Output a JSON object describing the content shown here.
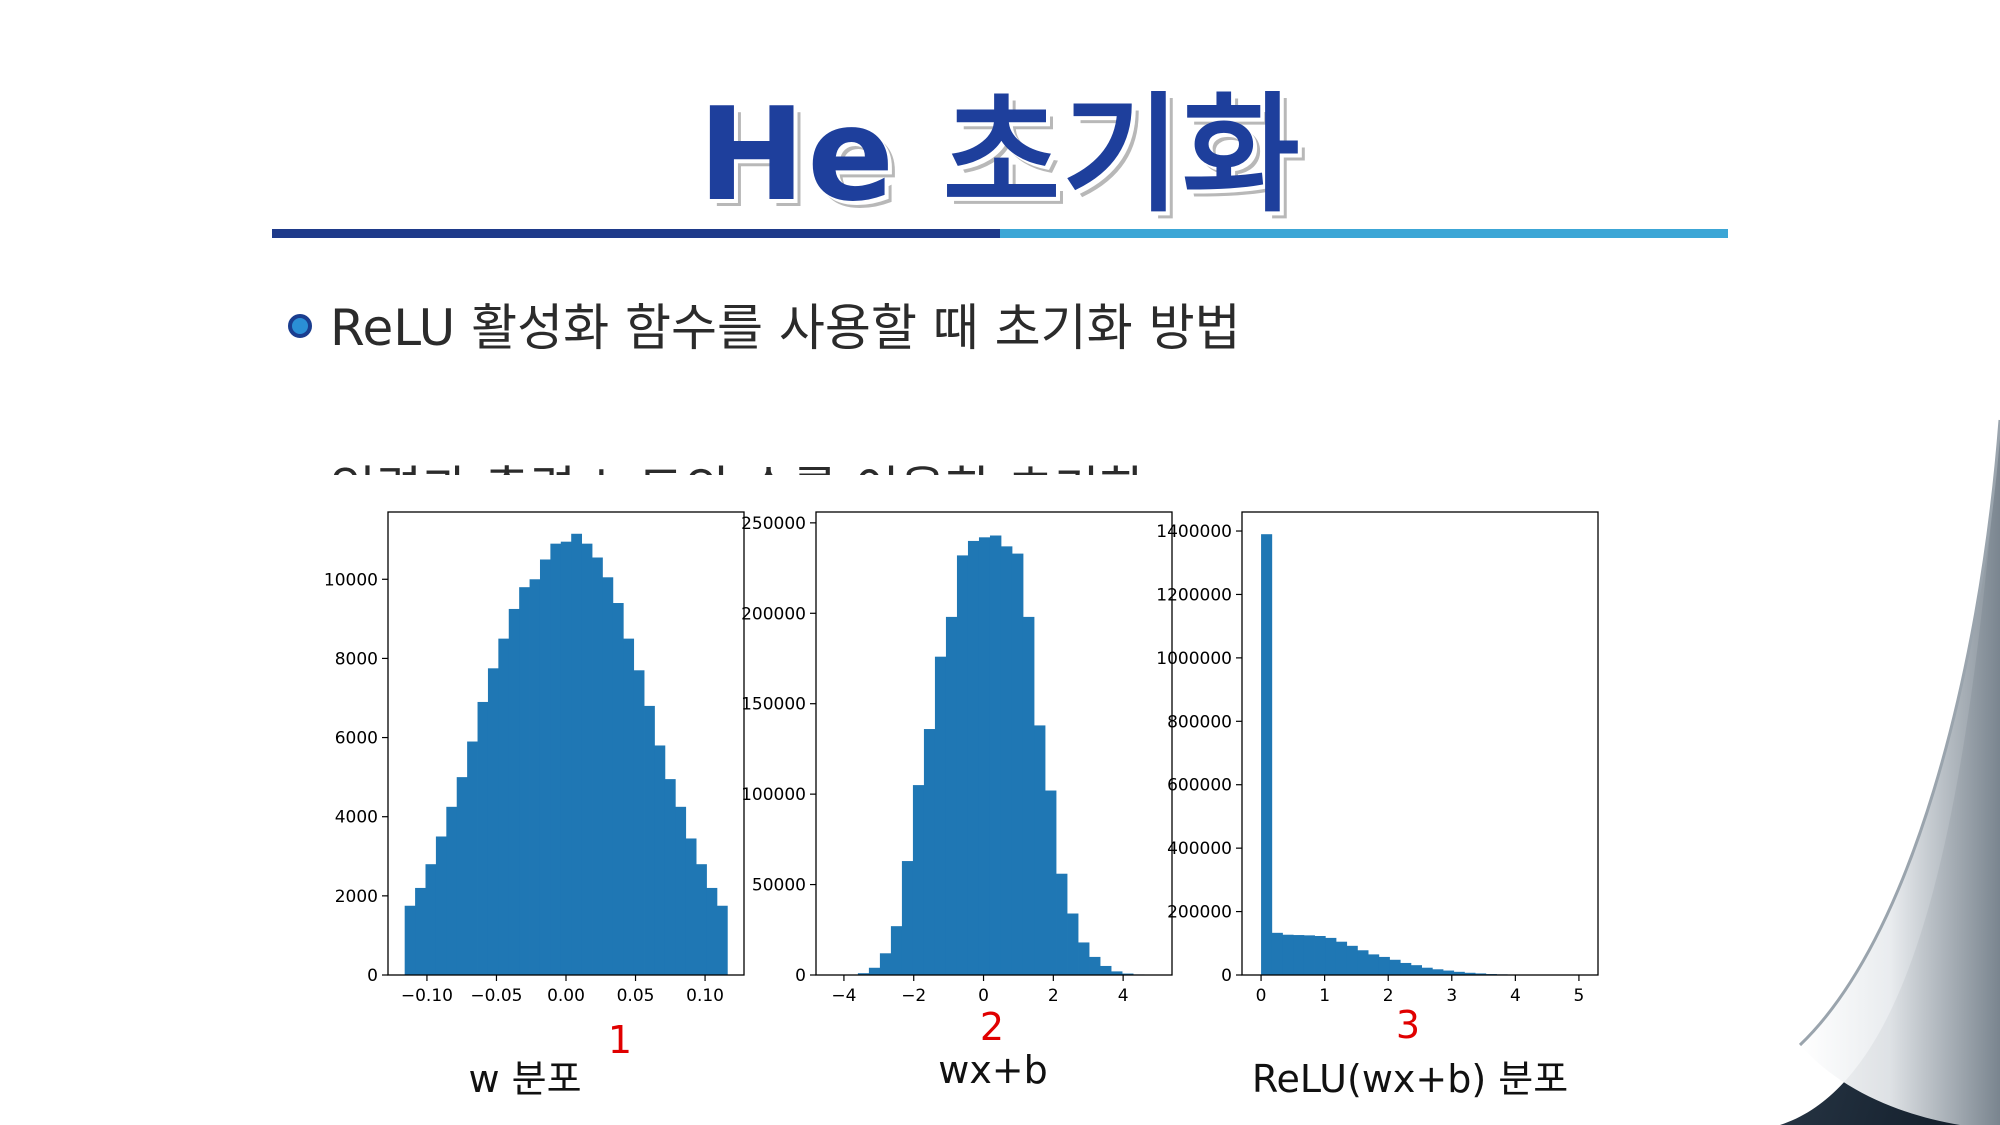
{
  "slide": {
    "title": "He 초기화",
    "bullets": [
      "ReLU 활성화 함수를 사용할 때 초기화 방법",
      "입력과 출력 노드의 수를 이용한 초기화"
    ]
  },
  "colors": {
    "title": "#1e3f9c",
    "rule_dark": "#1e3a8a",
    "rule_light": "#3ca6d6",
    "bar": "#1f77b4",
    "annotation_number": "#e00000"
  },
  "captions": [
    {
      "number": "1",
      "label": "w 분포"
    },
    {
      "number": "2",
      "label": "wx+b"
    },
    {
      "number": "3",
      "label": "ReLU(wx+b) 분포"
    }
  ],
  "chart_data": [
    {
      "type": "bar",
      "subtype": "histogram",
      "xlim": [
        -0.128,
        0.128
      ],
      "ylim": [
        0,
        11700
      ],
      "xticks": [
        -0.1,
        -0.05,
        0.0,
        0.05,
        0.1
      ],
      "xtick_labels": [
        "−0.10",
        "−0.05",
        "0.00",
        "0.05",
        "0.10"
      ],
      "yticks": [
        0,
        2000,
        4000,
        6000,
        8000,
        10000
      ],
      "ytick_labels": [
        "0",
        "2000",
        "4000",
        "6000",
        "8000",
        "10000"
      ],
      "bin_range": [
        -0.116,
        0.116
      ],
      "values": [
        1750,
        2200,
        2800,
        3500,
        4250,
        5000,
        5900,
        6900,
        7750,
        8500,
        9250,
        9800,
        10000,
        10500,
        10900,
        10950,
        11150,
        10900,
        10550,
        10050,
        9400,
        8500,
        7700,
        6800,
        5800,
        4950,
        4250,
        3450,
        2800,
        2200,
        1750
      ],
      "grid": false
    },
    {
      "type": "bar",
      "subtype": "histogram",
      "xlim": [
        -4.8,
        5.4
      ],
      "ylim": [
        0,
        256000
      ],
      "xticks": [
        -4,
        -2,
        0,
        2,
        4
      ],
      "xtick_labels": [
        "−4",
        "−2",
        "0",
        "2",
        "4"
      ],
      "yticks": [
        0,
        50000,
        100000,
        150000,
        200000,
        250000
      ],
      "ytick_labels": [
        "0",
        "50000",
        "100000",
        "150000",
        "200000",
        "250000"
      ],
      "bin_range": [
        -3.6,
        4.6
      ],
      "values": [
        1000,
        4000,
        12000,
        27000,
        63000,
        105000,
        136000,
        176000,
        198000,
        232000,
        240000,
        242000,
        243000,
        237000,
        233000,
        198000,
        138000,
        102000,
        56000,
        34000,
        18000,
        10000,
        5000,
        2000,
        800,
        300
      ],
      "grid": false
    },
    {
      "type": "bar",
      "subtype": "histogram",
      "xlim": [
        -0.3,
        5.3
      ],
      "ylim": [
        0,
        1460000
      ],
      "xticks": [
        0,
        1,
        2,
        3,
        4,
        5
      ],
      "xtick_labels": [
        "0",
        "1",
        "2",
        "3",
        "4",
        "5"
      ],
      "yticks": [
        0,
        200000,
        400000,
        600000,
        800000,
        1000000,
        1200000,
        1400000
      ],
      "ytick_labels": [
        "0",
        "200000",
        "400000",
        "600000",
        "800000",
        "1000000",
        "1200000",
        "1400000"
      ],
      "bin_range": [
        0,
        5.05
      ],
      "values": [
        1390000,
        133000,
        127000,
        126000,
        125000,
        123000,
        117000,
        105000,
        92000,
        78000,
        65000,
        57000,
        48000,
        38000,
        31000,
        23000,
        18000,
        14000,
        10000,
        7000,
        5000,
        3000,
        2000,
        1500,
        1000,
        600,
        400,
        250,
        150,
        80
      ],
      "grid": false
    }
  ]
}
